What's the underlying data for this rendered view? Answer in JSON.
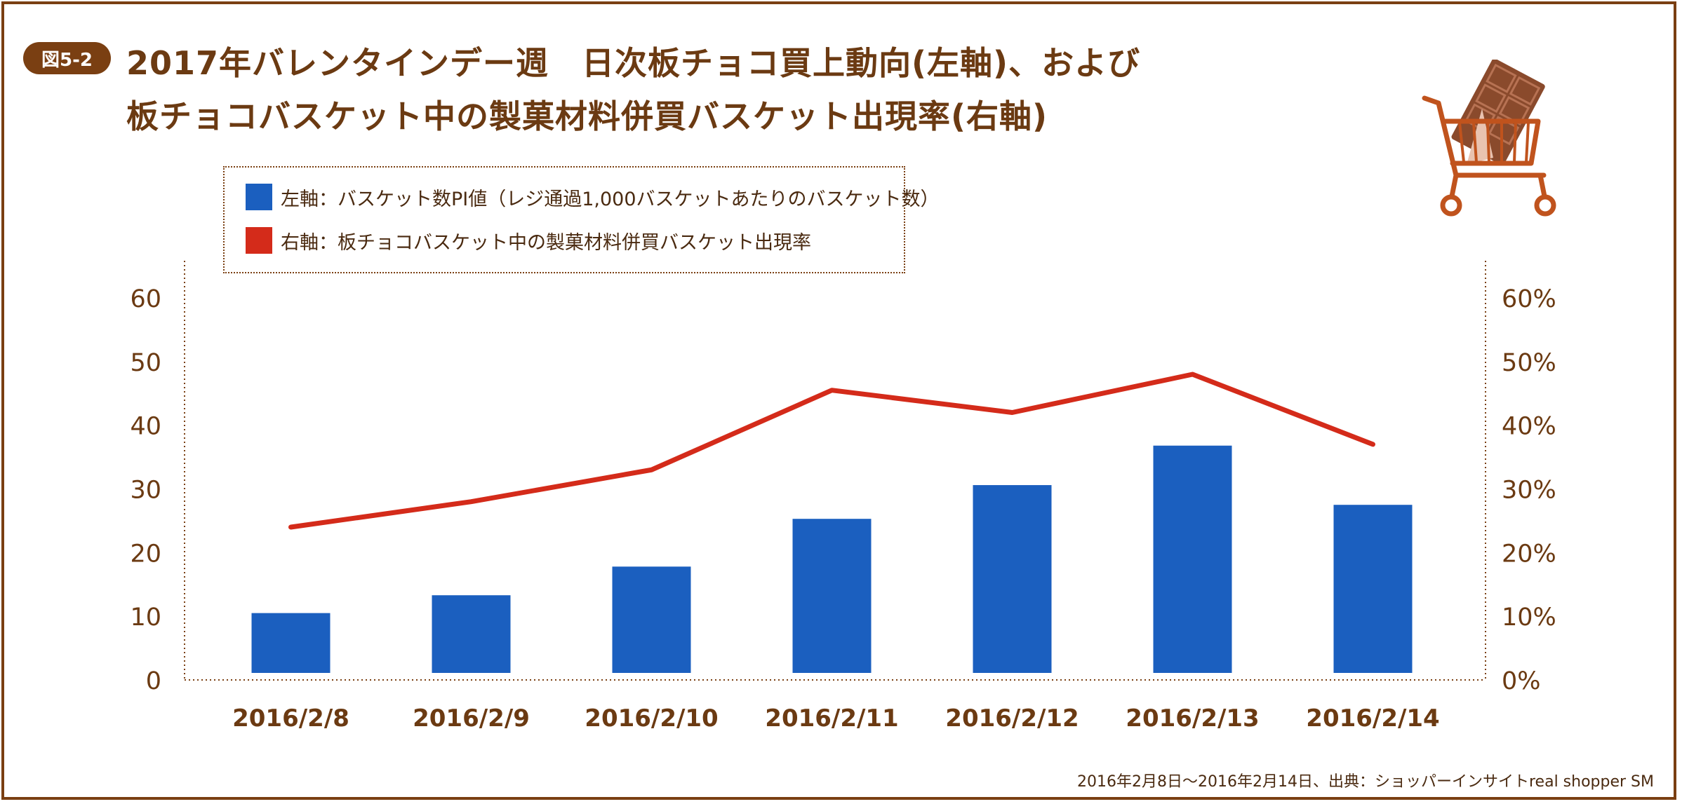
{
  "figure_label": "図5-2",
  "title_line1": "2017年バレンタインデー週　日次板チョコ買上動向(左軸)、および",
  "title_line2": "板チョコバスケット中の製菓材料併買バスケット出現率(右軸)",
  "source": "2016年2月8日〜2016年2月14日、出典：ショッパーインサイトreal shopper SM",
  "cart_icon": "shopping-cart-with-chocolate-icon",
  "colors": {
    "frame": "#7a3f12",
    "bar": "#1b5fbf",
    "line": "#d42b1a",
    "text": "#6b3a12",
    "cart": "#c0531d",
    "chocolate": "#8a4a2c"
  },
  "chart_data": {
    "type": "bar",
    "categories": [
      "2016/2/8",
      "2016/2/9",
      "2016/2/10",
      "2016/2/11",
      "2016/2/12",
      "2016/2/13",
      "2016/2/14"
    ],
    "series": [
      {
        "name": "左軸：バスケット数PI値（レジ通過1,000バスケットあたりのバスケット数）",
        "type": "bar",
        "axis": "left",
        "values": [
          10.5,
          13.3,
          17.8,
          25.3,
          30.6,
          36.8,
          27.5
        ]
      },
      {
        "name": "右軸：板チョコバスケット中の製菓材料併買バスケット出現率",
        "type": "line",
        "axis": "right",
        "values": [
          24,
          28,
          33,
          45.5,
          42,
          48,
          37
        ]
      }
    ],
    "yticks_left": [
      "0",
      "10",
      "20",
      "30",
      "40",
      "50",
      "60"
    ],
    "yticks_right": [
      "0%",
      "10%",
      "20%",
      "30%",
      "40%",
      "50%",
      "60%"
    ],
    "ylim_left": [
      0,
      60
    ],
    "ylim_right": [
      0,
      60
    ],
    "grid": false,
    "legend_position": "top-left"
  }
}
